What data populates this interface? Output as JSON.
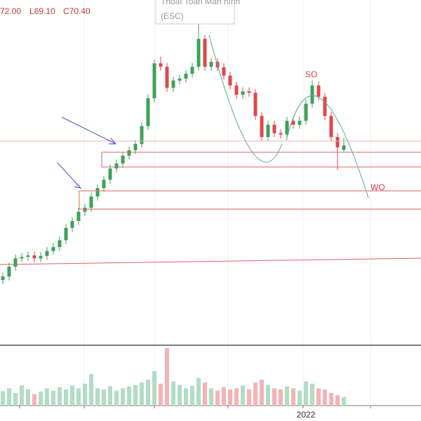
{
  "chart_data": {
    "type": "candlestick",
    "ohlc_labels": [
      "72.00",
      "L69.10",
      "C70.40"
    ],
    "tooltip": [
      "Thoát Toàn Màn hình",
      "(ESC)"
    ],
    "annotations": [
      "SO",
      "WO"
    ],
    "up_color": "#3fa15a",
    "down_color": "#e0474c",
    "volume_up_color": "#b3dcc5",
    "volume_down_color": "#f4b3b5",
    "ylim": [
      30,
      100
    ],
    "vlim": [
      0,
      100
    ],
    "categories": [
      null,
      null,
      null,
      null,
      null,
      null,
      null,
      null,
      null,
      null,
      null,
      null,
      null,
      null,
      null,
      null,
      null,
      null,
      null,
      null,
      null,
      null,
      null,
      null,
      null,
      null,
      null,
      null,
      null,
      null,
      null,
      null,
      null,
      null,
      null,
      null,
      null,
      null,
      null,
      null,
      null,
      null,
      null,
      null,
      null,
      null,
      null,
      null,
      "2022",
      null,
      null,
      null,
      null,
      null,
      null
    ],
    "open": [
      43.0,
      43.7,
      45.7,
      47.4,
      47.7,
      48.0,
      47.4,
      47.9,
      48.9,
      49.7,
      51.1,
      53.6,
      55.0,
      56.9,
      57.7,
      60.0,
      61.7,
      63.4,
      65.7,
      66.7,
      68.3,
      69.4,
      70.7,
      74.3,
      80.0,
      87.1,
      86.4,
      82.1,
      83.6,
      84.0,
      85.0,
      86.4,
      92.1,
      86.4,
      87.4,
      86.3,
      84.6,
      82.6,
      80.7,
      81.4,
      81.1,
      76.4,
      72.1,
      74.6,
      72.9,
      72.6,
      75.4,
      74.6,
      75.4,
      78.9,
      82.6,
      80.3,
      76.4,
      72.1,
      69.5
    ],
    "high": [
      44.5,
      46.5,
      48.2,
      48.5,
      48.8,
      48.8,
      48.7,
      49.7,
      50.5,
      51.9,
      54.4,
      55.8,
      57.7,
      58.5,
      60.8,
      62.5,
      64.2,
      66.5,
      67.5,
      69.1,
      70.2,
      71.5,
      75.1,
      80.8,
      87.9,
      88.5,
      87.2,
      84.4,
      84.8,
      85.8,
      87.2,
      95.7,
      92.9,
      88.2,
      88.2,
      87.1,
      85.4,
      83.4,
      82.2,
      82.2,
      81.9,
      77.2,
      75.4,
      75.4,
      73.7,
      76.2,
      76.2,
      76.2,
      79.7,
      83.6,
      83.4,
      81.1,
      77.2,
      72.9,
      72.0
    ],
    "low": [
      42.2,
      42.9,
      44.9,
      46.6,
      46.9,
      46.6,
      46.6,
      47.1,
      48.1,
      48.9,
      50.3,
      52.8,
      54.2,
      56.1,
      56.9,
      59.2,
      60.9,
      62.6,
      64.9,
      65.9,
      67.5,
      68.6,
      69.9,
      73.5,
      79.2,
      85.6,
      81.3,
      81.3,
      82.8,
      83.2,
      84.2,
      85.6,
      85.6,
      85.6,
      85.5,
      83.8,
      81.8,
      79.9,
      79.9,
      80.3,
      75.6,
      71.3,
      71.3,
      72.1,
      71.8,
      71.8,
      73.8,
      73.8,
      74.6,
      78.1,
      79.5,
      75.6,
      71.3,
      65.4,
      69.1
    ],
    "close": [
      43.7,
      45.7,
      47.4,
      47.7,
      48.0,
      47.4,
      47.9,
      48.9,
      49.7,
      51.1,
      53.6,
      55.0,
      56.9,
      57.7,
      60.0,
      61.7,
      63.4,
      65.7,
      66.7,
      68.3,
      69.4,
      70.7,
      74.3,
      80.0,
      87.1,
      86.4,
      82.1,
      83.6,
      84.0,
      85.0,
      86.4,
      92.1,
      86.4,
      87.4,
      86.3,
      84.6,
      82.6,
      80.7,
      81.4,
      81.1,
      76.4,
      72.1,
      74.6,
      72.9,
      72.6,
      75.4,
      74.6,
      75.4,
      78.9,
      82.6,
      80.3,
      76.4,
      72.1,
      70.0,
      70.4
    ],
    "volume": [
      25,
      30,
      22,
      35,
      28,
      20,
      24,
      30,
      26,
      32,
      28,
      35,
      30,
      38,
      55,
      30,
      28,
      34,
      26,
      30,
      33,
      36,
      40,
      45,
      60,
      38,
      100,
      42,
      36,
      30,
      34,
      48,
      40,
      30,
      26,
      32,
      28,
      30,
      35,
      28,
      40,
      45,
      36,
      30,
      28,
      33,
      30,
      26,
      42,
      38,
      30,
      28,
      22,
      18,
      15
    ]
  }
}
